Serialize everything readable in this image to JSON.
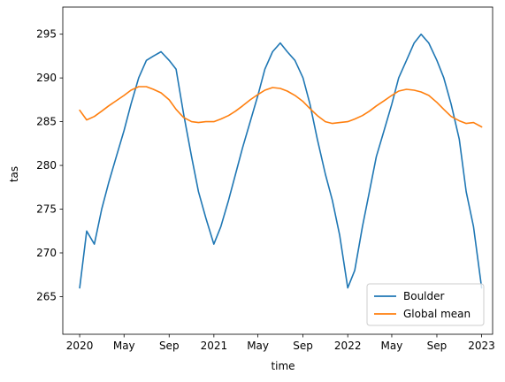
{
  "chart_data": {
    "type": "line",
    "title": "",
    "xlabel": "time",
    "ylabel": "tas",
    "xlim": [
      "2019-11-16",
      "2023-01-31"
    ],
    "ylim": [
      260.7,
      298.1
    ],
    "x_ticks": [
      {
        "date": "2020-01-01",
        "label": "2020"
      },
      {
        "date": "2020-05-01",
        "label": "May"
      },
      {
        "date": "2020-09-01",
        "label": "Sep"
      },
      {
        "date": "2021-01-01",
        "label": "2021"
      },
      {
        "date": "2021-05-01",
        "label": "May"
      },
      {
        "date": "2021-09-01",
        "label": "Sep"
      },
      {
        "date": "2022-01-01",
        "label": "2022"
      },
      {
        "date": "2022-05-01",
        "label": "May"
      },
      {
        "date": "2022-09-01",
        "label": "Sep"
      },
      {
        "date": "2023-01-01",
        "label": "2023"
      }
    ],
    "y_ticks": [
      265,
      270,
      275,
      280,
      285,
      290,
      295
    ],
    "grid": false,
    "legend": {
      "position": "bottom-right"
    },
    "series": [
      {
        "name": "Boulder",
        "color": "#1f77b4",
        "x": [
          "2020-01-01",
          "2020-01-20",
          "2020-02-10",
          "2020-03-01",
          "2020-03-20",
          "2020-04-10",
          "2020-05-01",
          "2020-05-20",
          "2020-06-10",
          "2020-07-01",
          "2020-07-20",
          "2020-08-10",
          "2020-09-01",
          "2020-09-20",
          "2020-10-10",
          "2020-11-01",
          "2020-11-20",
          "2020-12-10",
          "2021-01-01",
          "2021-01-20",
          "2021-02-10",
          "2021-03-01",
          "2021-03-20",
          "2021-04-10",
          "2021-05-01",
          "2021-05-20",
          "2021-06-10",
          "2021-07-01",
          "2021-07-20",
          "2021-08-10",
          "2021-09-01",
          "2021-09-20",
          "2021-10-10",
          "2021-11-01",
          "2021-11-20",
          "2021-12-10",
          "2022-01-01",
          "2022-01-20",
          "2022-02-10",
          "2022-03-01",
          "2022-03-20",
          "2022-04-10",
          "2022-05-01",
          "2022-05-20",
          "2022-06-10",
          "2022-07-01",
          "2022-07-20",
          "2022-08-10",
          "2022-09-01",
          "2022-09-20",
          "2022-10-10",
          "2022-11-01",
          "2022-11-20",
          "2022-12-10",
          "2023-01-01"
        ],
        "values": [
          266,
          272.5,
          271,
          275,
          278,
          281,
          284,
          287,
          290,
          292,
          292.5,
          293,
          292,
          291,
          286,
          281,
          277,
          274,
          271,
          273,
          276,
          279,
          282,
          285,
          288,
          291,
          293,
          294,
          293,
          292,
          290,
          287,
          283,
          279,
          276,
          272,
          266,
          268,
          273,
          277,
          281,
          284,
          287,
          290,
          292,
          294,
          295,
          294,
          292,
          290,
          287,
          283,
          277,
          273,
          266
        ]
      },
      {
        "name": "Global mean",
        "color": "#ff7f0e",
        "x": [
          "2020-01-01",
          "2020-01-20",
          "2020-02-10",
          "2020-03-01",
          "2020-03-20",
          "2020-04-10",
          "2020-05-01",
          "2020-05-20",
          "2020-06-10",
          "2020-07-01",
          "2020-07-20",
          "2020-08-10",
          "2020-09-01",
          "2020-09-20",
          "2020-10-10",
          "2020-11-01",
          "2020-11-20",
          "2020-12-10",
          "2021-01-01",
          "2021-01-20",
          "2021-02-10",
          "2021-03-01",
          "2021-03-20",
          "2021-04-10",
          "2021-05-01",
          "2021-05-20",
          "2021-06-10",
          "2021-07-01",
          "2021-07-20",
          "2021-08-10",
          "2021-09-01",
          "2021-09-20",
          "2021-10-10",
          "2021-11-01",
          "2021-11-20",
          "2021-12-10",
          "2022-01-01",
          "2022-01-20",
          "2022-02-10",
          "2022-03-01",
          "2022-03-20",
          "2022-04-10",
          "2022-05-01",
          "2022-05-20",
          "2022-06-10",
          "2022-07-01",
          "2022-07-20",
          "2022-08-10",
          "2022-09-01",
          "2022-09-20",
          "2022-10-10",
          "2022-11-01",
          "2022-11-20",
          "2022-12-10",
          "2023-01-01"
        ],
        "values": [
          286.3,
          285.2,
          285.6,
          286.2,
          286.8,
          287.4,
          288.0,
          288.6,
          289.0,
          289.0,
          288.7,
          288.3,
          287.5,
          286.4,
          285.5,
          285.0,
          284.9,
          285.0,
          285.0,
          285.3,
          285.7,
          286.2,
          286.8,
          287.5,
          288.1,
          288.6,
          288.9,
          288.8,
          288.5,
          288.0,
          287.3,
          286.5,
          285.7,
          285.0,
          284.8,
          284.9,
          285.0,
          285.3,
          285.7,
          286.2,
          286.8,
          287.4,
          288.0,
          288.5,
          288.7,
          288.6,
          288.4,
          288.0,
          287.2,
          286.4,
          285.6,
          285.1,
          284.8,
          284.9,
          284.4
        ]
      }
    ]
  }
}
